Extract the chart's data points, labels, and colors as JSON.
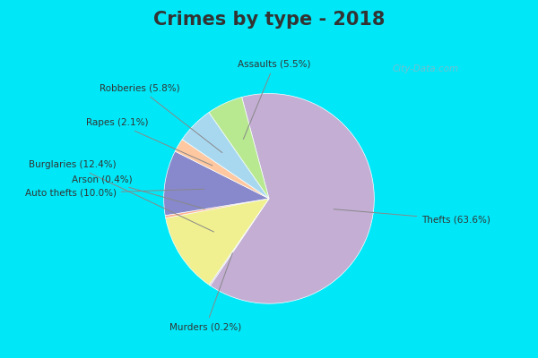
{
  "title": "Crimes by type - 2018",
  "labels": [
    "Thefts",
    "Murders",
    "Burglaries",
    "Arson",
    "Auto thefts",
    "Rapes",
    "Robberies",
    "Assaults"
  ],
  "values": [
    63.6,
    0.2,
    12.4,
    0.4,
    10.0,
    2.1,
    5.8,
    5.5
  ],
  "colors": [
    "#c4aed4",
    "#c4aed4",
    "#f0f0a0",
    "#f0c0a0",
    "#8080c8",
    "#f0c090",
    "#a8d8f0",
    "#b8e090"
  ],
  "background_cyan": "#00e8f8",
  "background_inner": "#d8eedc",
  "title_fontsize": 15,
  "title_color": "#333333",
  "startangle": 105,
  "annotation_color": "#333333",
  "annotation_fontsize": 7.5,
  "watermark": "City-Data.com",
  "watermark_color": "#88b8c8"
}
